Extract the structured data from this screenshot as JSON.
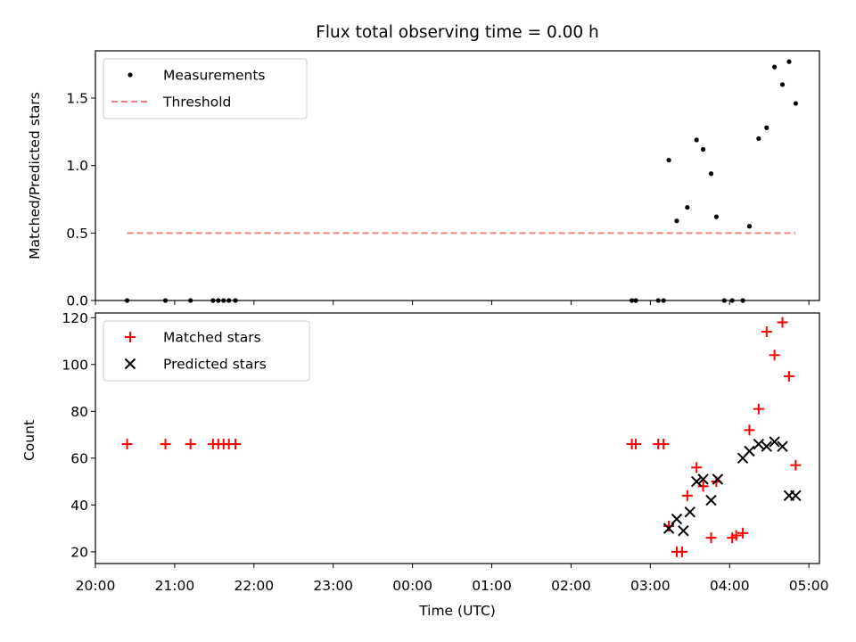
{
  "chart_data": [
    {
      "type": "scatter",
      "title": "Flux total observing time = 0.00 h",
      "ylabel": "Matched/Predicted stars",
      "xlabel": "",
      "xlim": [
        "20:00",
        "05:08"
      ],
      "ylim": [
        0,
        1.85
      ],
      "yticks": [
        "0.0",
        "0.5",
        "1.0",
        "1.5"
      ],
      "grid": false,
      "legend_position": "top-left",
      "series": [
        {
          "name": "Measurements",
          "marker": "dot",
          "color": "#000000",
          "x": [
            "20:24",
            "20:53",
            "21:12",
            "21:29",
            "21:33",
            "21:37",
            "21:41",
            "21:46",
            "02:46",
            "02:49",
            "03:06",
            "03:10",
            "03:14",
            "03:20",
            "03:28",
            "03:35",
            "03:40",
            "03:46",
            "03:50",
            "03:56",
            "04:02",
            "04:10",
            "04:15",
            "04:22",
            "04:28",
            "04:34",
            "04:40",
            "04:45",
            "04:50"
          ],
          "y": [
            0,
            0,
            0,
            0,
            0,
            0,
            0,
            0,
            0,
            0,
            0,
            0,
            1.04,
            0.59,
            0.69,
            1.19,
            1.12,
            0.94,
            0.62,
            0,
            0,
            0,
            0.55,
            1.2,
            1.28,
            1.73,
            1.6,
            1.77,
            1.46
          ]
        },
        {
          "name": "Threshold",
          "line_style": "dashed",
          "color": "#f08080",
          "x": [
            "20:24",
            "04:50"
          ],
          "y": [
            0.5,
            0.5
          ]
        }
      ]
    },
    {
      "type": "scatter",
      "title": "",
      "ylabel": "Count",
      "xlabel": "Time (UTC)",
      "xlim": [
        "20:00",
        "05:08"
      ],
      "ylim": [
        15,
        122
      ],
      "yticks": [
        "20",
        "40",
        "60",
        "80",
        "100",
        "120"
      ],
      "xticks": [
        "20:00",
        "21:00",
        "22:00",
        "23:00",
        "00:00",
        "01:00",
        "02:00",
        "03:00",
        "04:00",
        "05:00"
      ],
      "grid": false,
      "legend_position": "top-left",
      "series": [
        {
          "name": "Matched stars",
          "marker": "plus",
          "color": "#ff0000",
          "x": [
            "20:24",
            "20:53",
            "21:12",
            "21:29",
            "21:33",
            "21:37",
            "21:41",
            "21:46",
            "02:46",
            "02:49",
            "03:06",
            "03:10",
            "03:14",
            "03:20",
            "03:24",
            "03:28",
            "03:35",
            "03:40",
            "03:46",
            "03:50",
            "04:02",
            "04:05",
            "04:10",
            "04:15",
            "04:22",
            "04:28",
            "04:34",
            "04:40",
            "04:45",
            "04:50"
          ],
          "y": [
            66,
            66,
            66,
            66,
            66,
            66,
            66,
            66,
            66,
            66,
            66,
            66,
            31,
            20,
            20,
            44,
            56,
            48,
            26,
            50,
            26,
            27,
            28,
            72,
            81,
            114,
            104,
            118,
            95,
            57
          ]
        },
        {
          "name": "Predicted stars",
          "marker": "x",
          "color": "#000000",
          "x": [
            "03:14",
            "03:20",
            "03:25",
            "03:30",
            "03:35",
            "03:40",
            "03:46",
            "03:51",
            "04:10",
            "04:15",
            "04:22",
            "04:28",
            "04:34",
            "04:40",
            "04:45",
            "04:50"
          ],
          "y": [
            30,
            34,
            29,
            37,
            50,
            51,
            42,
            51,
            60,
            63,
            66,
            65,
            67,
            65,
            44,
            44
          ]
        }
      ]
    }
  ]
}
